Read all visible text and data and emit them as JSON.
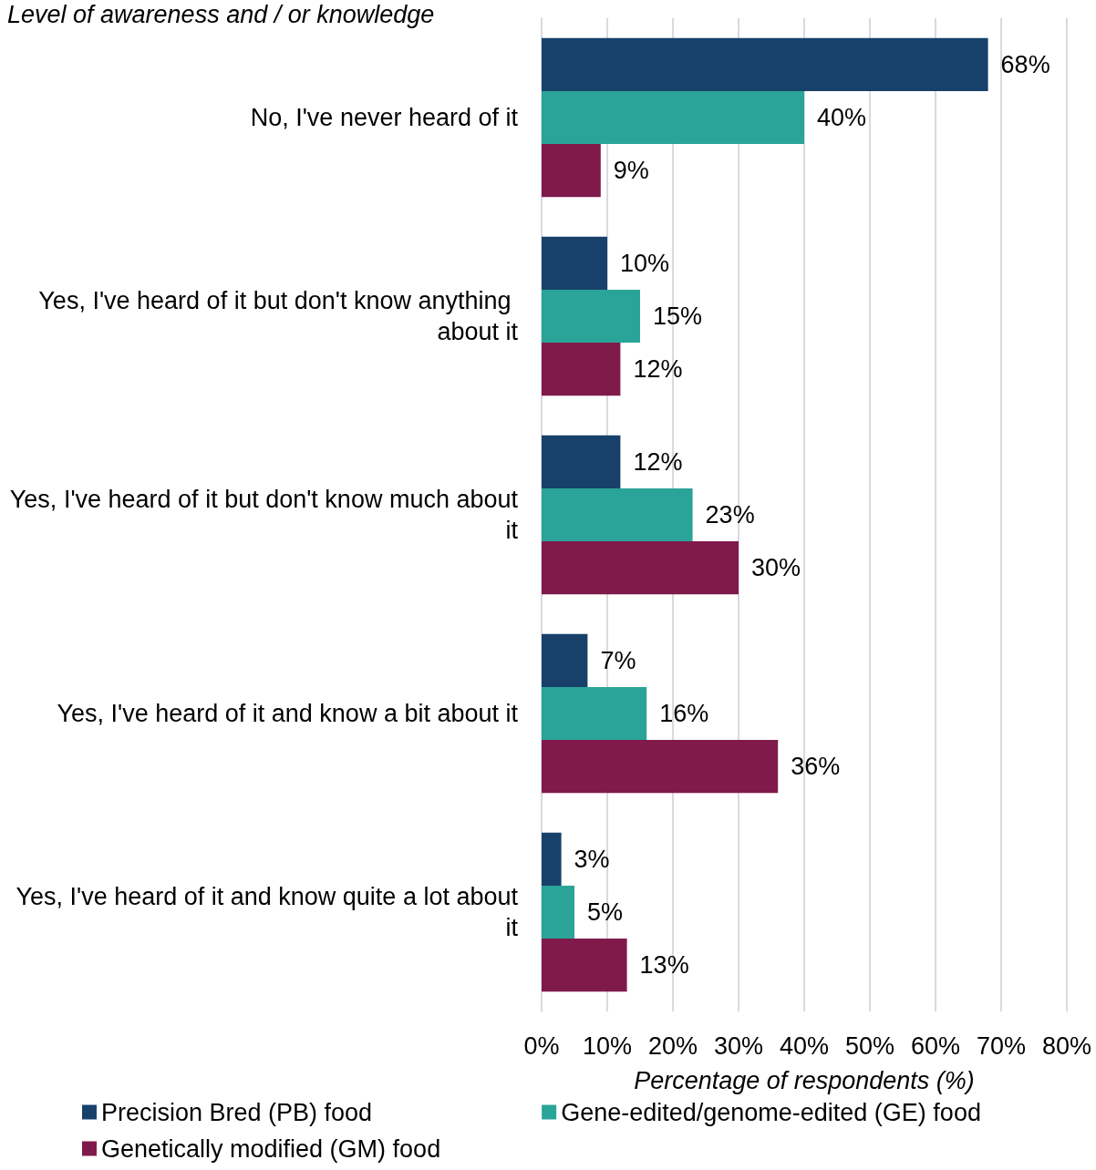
{
  "chart_data": {
    "type": "bar",
    "orientation": "horizontal",
    "ylabel": "Level of awareness and / or knowledge",
    "xlabel": "Percentage of respondents (%)",
    "categories": [
      "No, I've never heard of it",
      "Yes, I've heard of it but don't know anything about it",
      "Yes, I've heard of it but don't know much about it",
      "Yes, I've heard of it and know a bit about it",
      "Yes, I've heard of it and know quite a lot about it"
    ],
    "series": [
      {
        "name": "Precision Bred (PB) food",
        "color": "#17416b",
        "values": [
          68,
          10,
          12,
          7,
          3
        ],
        "value_labels": [
          "68%",
          "10%",
          "12%",
          "7%",
          "3%"
        ]
      },
      {
        "name": "Gene-edited/genome-edited (GE) food",
        "color": "#2aa498",
        "values": [
          40,
          15,
          23,
          16,
          5
        ],
        "value_labels": [
          "40%",
          "15%",
          "23%",
          "16%",
          "5%"
        ]
      },
      {
        "name": "Genetically modified (GM) food",
        "color": "#801a4b",
        "values": [
          9,
          12,
          30,
          36,
          13
        ],
        "value_labels": [
          "9%",
          "12%",
          "30%",
          "36%",
          "13%"
        ]
      }
    ],
    "xlim": [
      0,
      80
    ],
    "xticks": [
      {
        "value": 0,
        "label": "0%"
      },
      {
        "value": 10,
        "label": "10%"
      },
      {
        "value": 20,
        "label": "20%"
      },
      {
        "value": 30,
        "label": "30%"
      },
      {
        "value": 40,
        "label": "40%"
      },
      {
        "value": 50,
        "label": "50%"
      },
      {
        "value": 60,
        "label": "60%"
      },
      {
        "value": 70,
        "label": "70%"
      },
      {
        "value": 80,
        "label": "80%"
      }
    ],
    "grid": "x",
    "legend": "bottom"
  }
}
